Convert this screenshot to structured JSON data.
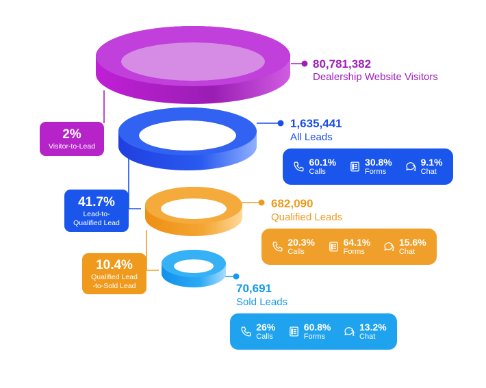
{
  "stages": [
    {
      "id": "visitors",
      "value": "80,781,382",
      "label": "Dealership Website Visitors",
      "color": "#9e1fb8"
    },
    {
      "id": "all_leads",
      "value": "1,635,441",
      "label": "All Leads",
      "color": "#1a4ee8"
    },
    {
      "id": "qualified",
      "value": "682,090",
      "label": "Qualified Leads",
      "color": "#ee9a1e"
    },
    {
      "id": "sold",
      "value": "70,691",
      "label": "Sold Leads",
      "color": "#159ae8"
    }
  ],
  "conversion_rates": [
    {
      "pct": "2%",
      "label_lines": [
        "Visitor-to-Lead"
      ],
      "color": "#b523c9"
    },
    {
      "pct": "41.7%",
      "label_lines": [
        "Lead-to-",
        "Qualified Lead"
      ],
      "color": "#1a56ec"
    },
    {
      "pct": "10.4%",
      "label_lines": [
        "Qualified Lead",
        "-to-Sold Lead"
      ],
      "color": "#ef9a1c"
    }
  ],
  "channel_breakdowns": [
    {
      "stage": "All Leads",
      "color": "#1a56ec",
      "items": [
        {
          "icon": "phone-icon",
          "pct": "60.1%",
          "name": "Calls"
        },
        {
          "icon": "form-icon",
          "pct": "30.8%",
          "name": "Forms"
        },
        {
          "icon": "chat-icon",
          "pct": "9.1%",
          "name": "Chat"
        }
      ]
    },
    {
      "stage": "Qualified Leads",
      "color": "#f0a02a",
      "items": [
        {
          "icon": "phone-icon",
          "pct": "20.3%",
          "name": "Calls"
        },
        {
          "icon": "form-icon",
          "pct": "64.1%",
          "name": "Forms"
        },
        {
          "icon": "chat-icon",
          "pct": "15.6%",
          "name": "Chat"
        }
      ]
    },
    {
      "stage": "Sold Leads",
      "color": "#1fa3ef",
      "items": [
        {
          "icon": "phone-icon",
          "pct": "26%",
          "name": "Calls"
        },
        {
          "icon": "form-icon",
          "pct": "60.8%",
          "name": "Forms"
        },
        {
          "icon": "chat-icon",
          "pct": "13.2%",
          "name": "Chat"
        }
      ]
    }
  ]
}
